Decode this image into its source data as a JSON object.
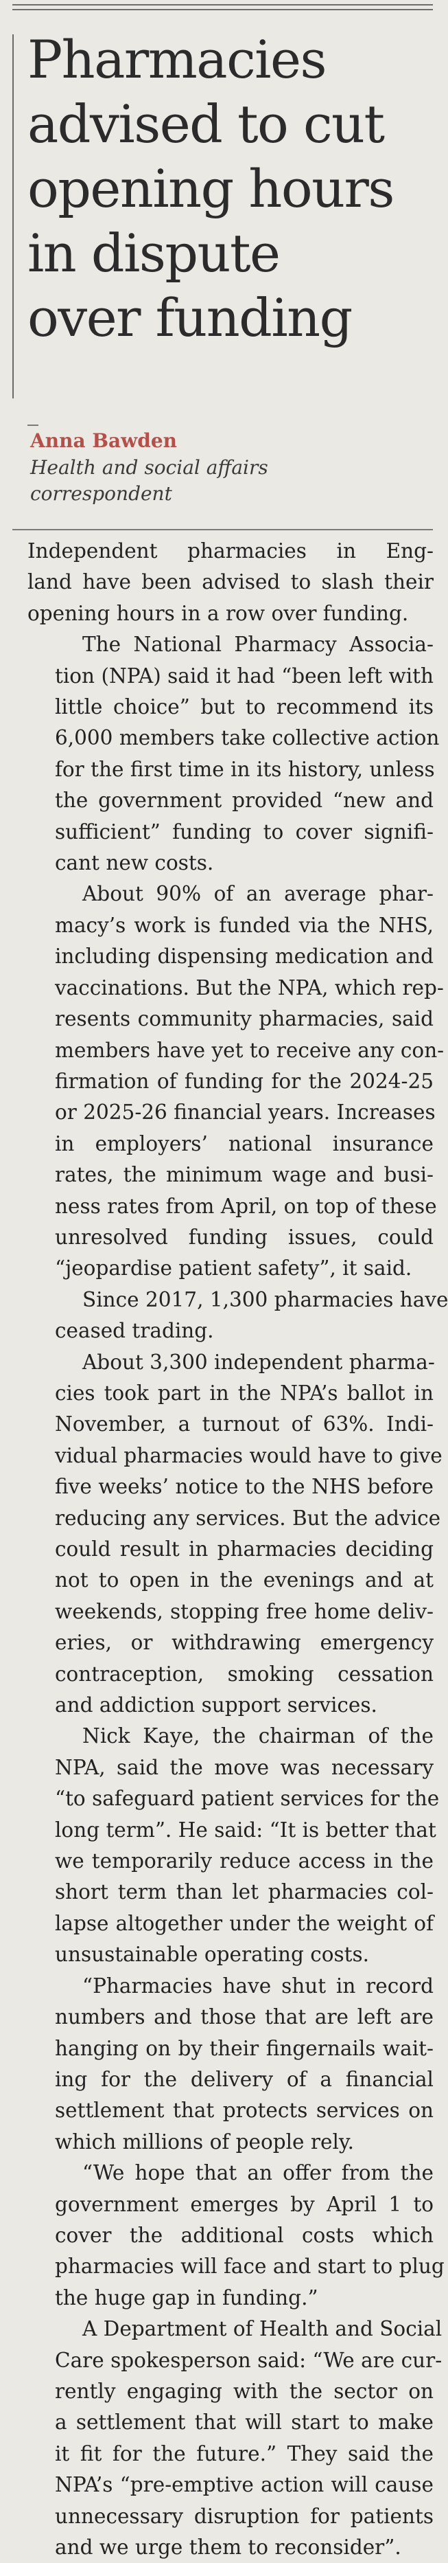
{
  "headline": {
    "lines": [
      "Pharmacies",
      "advised to cut",
      "opening hours",
      "in dispute",
      "over funding"
    ]
  },
  "byline": {
    "author": "Anna Bawden",
    "role_lines": [
      "Health and social affairs",
      "correspondent"
    ]
  },
  "article": {
    "paragraphs": [
      [
        "Independent pharmacies in Eng-",
        "land have been advised to slash their",
        "opening hours in a row over funding."
      ],
      [
        "The National Pharmacy Associa-",
        "tion (NPA) said it had “been left with",
        "little choice” but to recommend its",
        "6,000 members take collective action",
        "for the first time in its history, unless",
        "the government provided “new and",
        "sufficient” funding to cover signifi-",
        "cant new costs."
      ],
      [
        "About 90% of an average phar-",
        "macy’s work is funded via the NHS,",
        "including dispensing medication and",
        "vaccinations. But the NPA, which rep-",
        "resents community pharmacies, said",
        "members have yet to receive any con-",
        "firmation of funding for the 2024-25",
        "or 2025-26 financial years. Increases",
        "in employers’ national insurance",
        "rates, the minimum wage and busi-",
        "ness rates from April, on top of these",
        "unresolved funding issues, could",
        "“jeopardise patient safety”, it said."
      ],
      [
        "Since 2017, 1,300 pharmacies have",
        "ceased trading."
      ],
      [
        "About 3,300 independent pharma-",
        "cies took part in the NPA’s ballot in",
        "November, a turnout of 63%. Indi-",
        "vidual pharmacies would have to give",
        "five weeks’ notice to the NHS before",
        "reducing any services. But the advice",
        "could result in pharmacies deciding",
        "not to open in the evenings and at",
        "weekends, stopping free home deliv-",
        "eries, or withdrawing emergency",
        "contraception, smoking cessation",
        "and addiction support services."
      ],
      [
        "Nick Kaye, the chairman of the",
        "NPA, said the move was necessary",
        "“to safeguard patient services for the",
        "long term”. He said: “It is better that",
        "we temporarily reduce access in the",
        "short term than let pharmacies col-",
        "lapse altogether under the weight of",
        "unsustainable operating costs."
      ],
      [
        "“Pharmacies have shut in record",
        "numbers and those that are left are",
        "hanging on by their fingernails wait-",
        "ing for the delivery of a financial",
        "settlement that protects services on",
        "which millions of people rely."
      ],
      [
        "“We hope that an offer from the",
        "government emerges by April 1 to",
        "cover the additional costs which",
        "pharmacies will face and start to plug",
        "the huge gap in funding.”"
      ],
      [
        "A Department of Health and Social",
        "Care spokesperson said: “We are cur-",
        "rently engaging with the sector on",
        "a settlement that will start to make",
        "it fit for the future.” They said the",
        "NPA’s “pre-emptive action will cause",
        "unnecessary disruption for patients",
        "and we urge them to reconsider”."
      ]
    ]
  }
}
